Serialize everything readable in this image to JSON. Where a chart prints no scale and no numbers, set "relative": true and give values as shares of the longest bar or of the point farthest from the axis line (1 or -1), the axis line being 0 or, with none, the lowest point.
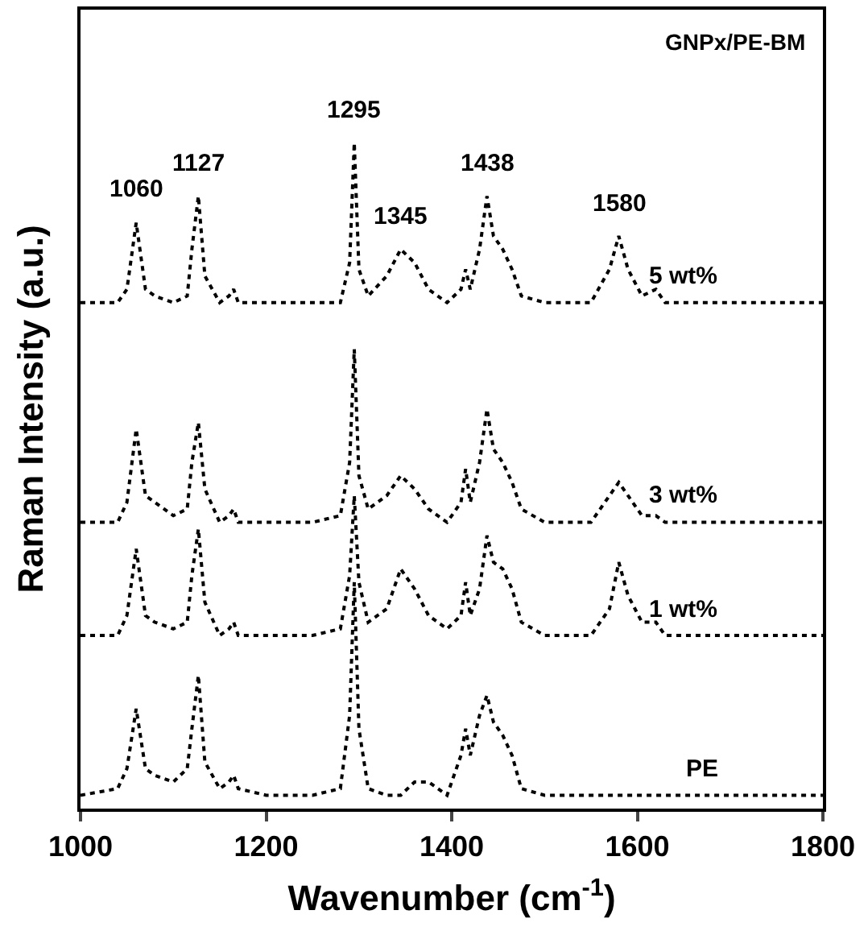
{
  "chart_data": {
    "type": "line",
    "relative": true,
    "xlabel": "Wavenumber (cm$^{-1}$)",
    "ylabel": "Raman Intensity (a.u.)",
    "xlim": [
      1000,
      1800
    ],
    "xticks": [
      1000,
      1200,
      1400,
      1600,
      1800
    ],
    "tick_labels": "x",
    "legend": false,
    "line_style": "dotted",
    "marker": "none",
    "x": [
      1000,
      1040,
      1050,
      1060,
      1070,
      1080,
      1100,
      1115,
      1120,
      1127,
      1134,
      1150,
      1160,
      1165,
      1170,
      1200,
      1250,
      1280,
      1290,
      1295,
      1300,
      1310,
      1330,
      1345,
      1360,
      1375,
      1395,
      1410,
      1415,
      1420,
      1430,
      1438,
      1445,
      1455,
      1465,
      1475,
      1500,
      1550,
      1570,
      1580,
      1590,
      1605,
      1620,
      1630,
      1700,
      1800
    ],
    "series": [
      {
        "name": "5 wt%",
        "color": "#000000",
        "values": [
          0.76,
          0.76,
          0.78,
          0.88,
          0.78,
          0.77,
          0.76,
          0.77,
          0.84,
          0.92,
          0.8,
          0.76,
          0.77,
          0.78,
          0.76,
          0.76,
          0.76,
          0.76,
          0.82,
          1.0,
          0.81,
          0.77,
          0.8,
          0.84,
          0.82,
          0.78,
          0.76,
          0.78,
          0.81,
          0.78,
          0.84,
          0.92,
          0.86,
          0.84,
          0.81,
          0.77,
          0.76,
          0.76,
          0.81,
          0.86,
          0.81,
          0.77,
          0.78,
          0.76,
          0.76,
          0.76
        ]
      },
      {
        "name": "3 wt%",
        "color": "#000000",
        "values": [
          0.43,
          0.43,
          0.46,
          0.57,
          0.47,
          0.46,
          0.44,
          0.45,
          0.52,
          0.58,
          0.48,
          0.43,
          0.44,
          0.45,
          0.43,
          0.43,
          0.43,
          0.44,
          0.52,
          0.69,
          0.5,
          0.45,
          0.47,
          0.5,
          0.48,
          0.45,
          0.43,
          0.46,
          0.51,
          0.46,
          0.52,
          0.6,
          0.54,
          0.52,
          0.49,
          0.45,
          0.43,
          0.43,
          0.47,
          0.49,
          0.47,
          0.44,
          0.44,
          0.43,
          0.43,
          0.43
        ]
      },
      {
        "name": "1 wt%",
        "color": "#000000",
        "values": [
          0.26,
          0.26,
          0.29,
          0.39,
          0.29,
          0.28,
          0.27,
          0.28,
          0.35,
          0.42,
          0.31,
          0.26,
          0.27,
          0.28,
          0.26,
          0.26,
          0.26,
          0.27,
          0.35,
          0.47,
          0.34,
          0.28,
          0.3,
          0.36,
          0.33,
          0.29,
          0.27,
          0.29,
          0.34,
          0.29,
          0.33,
          0.41,
          0.37,
          0.36,
          0.33,
          0.28,
          0.26,
          0.26,
          0.3,
          0.37,
          0.32,
          0.28,
          0.28,
          0.26,
          0.26,
          0.26
        ]
      },
      {
        "name": "PE",
        "color": "#000000",
        "values": [
          0.02,
          0.03,
          0.06,
          0.15,
          0.06,
          0.05,
          0.04,
          0.06,
          0.12,
          0.2,
          0.07,
          0.03,
          0.04,
          0.05,
          0.03,
          0.02,
          0.02,
          0.03,
          0.14,
          0.34,
          0.12,
          0.03,
          0.02,
          0.02,
          0.04,
          0.04,
          0.02,
          0.08,
          0.12,
          0.08,
          0.14,
          0.17,
          0.13,
          0.11,
          0.08,
          0.03,
          0.02,
          0.02,
          0.02,
          0.02,
          0.02,
          0.02,
          0.02,
          0.02,
          0.02,
          0.02
        ]
      }
    ],
    "annotations": [
      "GNPx/PE-BM",
      {
        "text": "1060",
        "x": 1060,
        "y": 0.88
      },
      {
        "text": "1127",
        "x": 1127,
        "y": 0.92
      },
      {
        "text": "1295",
        "x": 1295,
        "y": 1.0
      },
      {
        "text": "1345",
        "x": 1345,
        "y": 0.84
      },
      {
        "text": "1438",
        "x": 1438,
        "y": 0.92
      },
      {
        "text": "1580",
        "x": 1580,
        "y": 0.86
      }
    ]
  }
}
